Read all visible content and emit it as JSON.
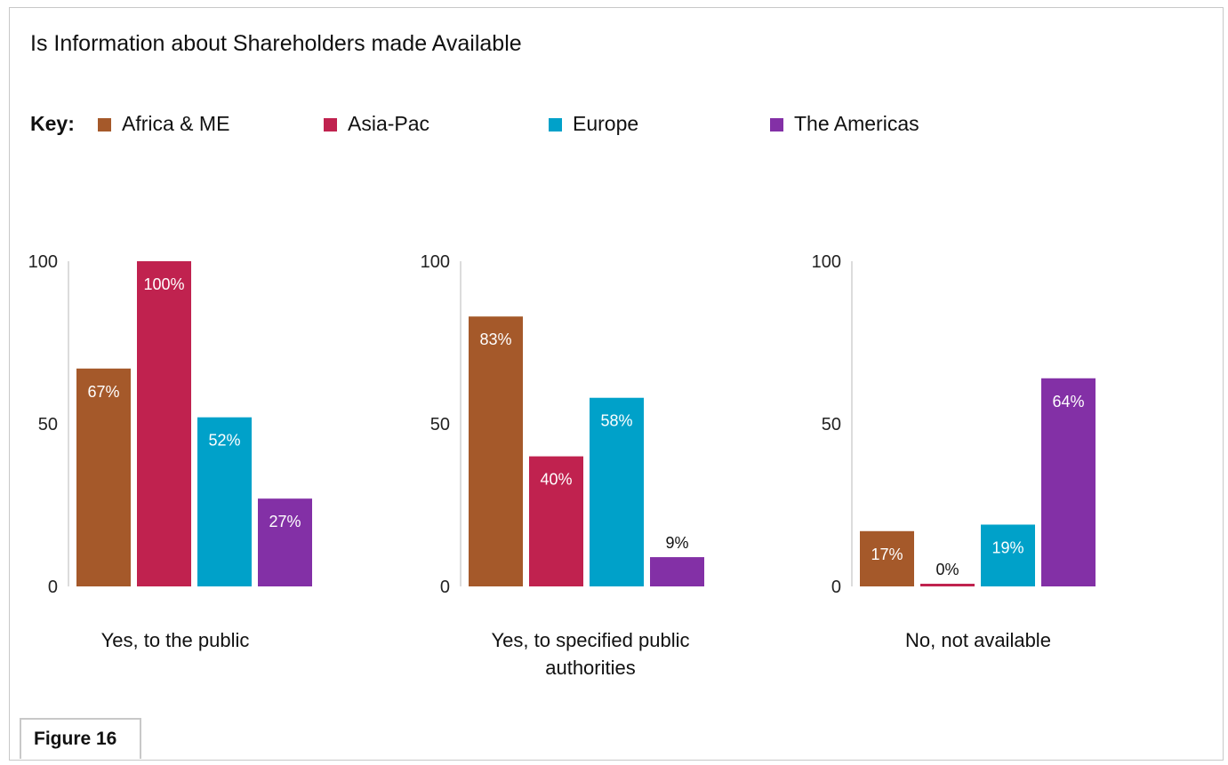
{
  "title": "Is Information about Shareholders made Available",
  "legend": {
    "key_label": "Key:",
    "items": [
      {
        "label": "Africa & ME",
        "color": "#a5592a"
      },
      {
        "label": "Asia-Pac",
        "color": "#c0224f"
      },
      {
        "label": "Europe",
        "color": "#00a1c9"
      },
      {
        "label": "The Americas",
        "color": "#8330a6"
      }
    ]
  },
  "figure_label": "Figure 16",
  "chart_data": [
    {
      "type": "bar",
      "xlabel": "Yes, to the public",
      "ylim": [
        0,
        100
      ],
      "yticks": [
        "0",
        "50",
        "100"
      ],
      "categories": [
        "Africa & ME",
        "Asia-Pac",
        "Europe",
        "The Americas"
      ],
      "values": [
        67,
        100,
        52,
        27
      ],
      "data_labels": [
        "67%",
        "100%",
        "52%",
        "27%"
      ]
    },
    {
      "type": "bar",
      "xlabel": "Yes, to specified public authorities",
      "ylim": [
        0,
        100
      ],
      "yticks": [
        "0",
        "50",
        "100"
      ],
      "categories": [
        "Africa & ME",
        "Asia-Pac",
        "Europe",
        "The Americas"
      ],
      "values": [
        83,
        40,
        58,
        9
      ],
      "data_labels": [
        "83%",
        "40%",
        "58%",
        "9%"
      ]
    },
    {
      "type": "bar",
      "xlabel": "No, not available",
      "ylim": [
        0,
        100
      ],
      "yticks": [
        "0",
        "50",
        "100"
      ],
      "categories": [
        "Africa & ME",
        "Asia-Pac",
        "Europe",
        "The Americas"
      ],
      "values": [
        17,
        0,
        19,
        64
      ],
      "data_labels": [
        "17%",
        "0%",
        "19%",
        "64%"
      ]
    }
  ]
}
